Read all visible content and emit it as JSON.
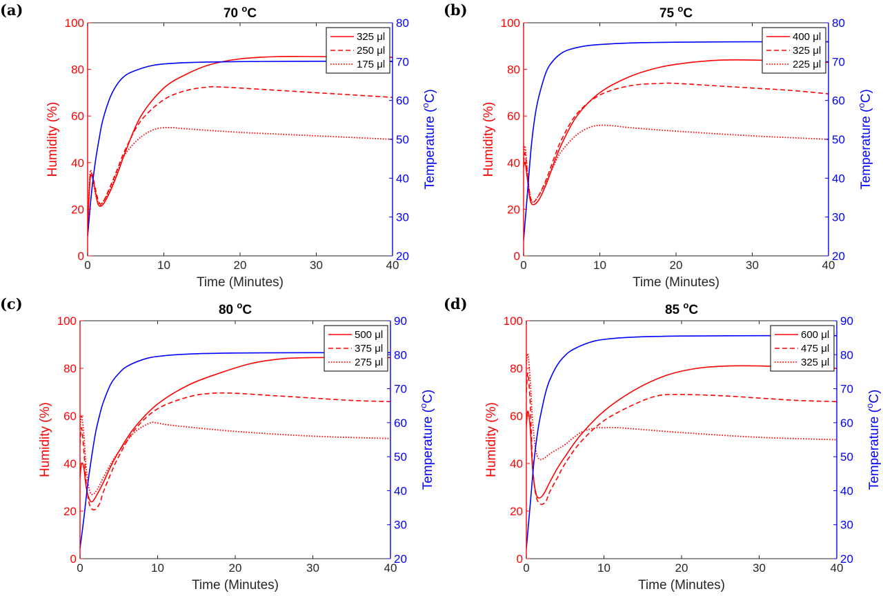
{
  "colors": {
    "humidity": "#ff0000",
    "temperature": "#0000ff",
    "axis": "#262626"
  },
  "chart_data": [
    {
      "panel_label": "(a)",
      "type": "line",
      "title_main": "70 ",
      "title_sup": "o",
      "title_end": "C",
      "xlabel": "Time (Minutes)",
      "ylabel_left": "Humidity (%)",
      "ylabel_right_main": "Temperature (",
      "ylabel_right_sup": "o",
      "ylabel_right_end": "C)",
      "xlim": [
        0,
        40
      ],
      "ylim_left": [
        0,
        100
      ],
      "ylim_right": [
        20,
        80
      ],
      "xticks": [
        "0",
        "10",
        "20",
        "30",
        "40"
      ],
      "yticks_left": [
        "0",
        "20",
        "40",
        "60",
        "80",
        "100"
      ],
      "yticks_right": [
        "20",
        "30",
        "40",
        "50",
        "60",
        "70",
        "80"
      ],
      "legend_position": "top-right",
      "series": [
        {
          "name": "325 μl",
          "axis": "left",
          "style": "solid",
          "x": [
            0,
            0.3,
            0.6,
            1.0,
            1.4,
            2,
            3,
            4,
            5,
            7,
            10,
            13,
            16,
            20,
            25,
            30,
            35,
            40
          ],
          "y": [
            10,
            32,
            34,
            28,
            22,
            22,
            28,
            36,
            45,
            60,
            72,
            78,
            82,
            84.5,
            85.5,
            85.5,
            85.3,
            85.2
          ]
        },
        {
          "name": "250 μl",
          "axis": "left",
          "style": "dashed",
          "x": [
            0,
            0.3,
            0.6,
            1.0,
            1.5,
            2,
            3,
            4,
            5,
            7,
            10,
            13,
            16,
            17,
            20,
            25,
            30,
            35,
            40
          ],
          "y": [
            10,
            33,
            35,
            29,
            23,
            23,
            30,
            38,
            46,
            58,
            67,
            71,
            72.5,
            72.5,
            72,
            71,
            70,
            69,
            68
          ]
        },
        {
          "name": "175 μl",
          "axis": "left",
          "style": "dotted",
          "x": [
            0,
            0.3,
            0.6,
            1.0,
            1.5,
            2,
            3,
            4,
            5,
            7,
            9,
            11,
            13,
            20,
            30,
            40
          ],
          "y": [
            10,
            35,
            34,
            27,
            22,
            23,
            29,
            37,
            44,
            51,
            54.5,
            55,
            54.5,
            53,
            51.5,
            50
          ]
        },
        {
          "name": "Temperature",
          "axis": "right",
          "style": "solid",
          "x": [
            0,
            0.5,
            1,
            1.5,
            2,
            3,
            4,
            5,
            6,
            8,
            10,
            14,
            20,
            30,
            40
          ],
          "y": [
            25,
            36,
            44,
            50,
            55,
            61,
            64.5,
            66.5,
            67.5,
            68.8,
            69.4,
            69.8,
            70,
            70.1,
            70.1
          ]
        }
      ]
    },
    {
      "panel_label": "(b)",
      "type": "line",
      "title_main": "75 ",
      "title_sup": "o",
      "title_end": "C",
      "xlabel": "Time (Minutes)",
      "ylabel_left": "Humidity (%)",
      "ylabel_right_main": "Temperature (",
      "ylabel_right_sup": "o",
      "ylabel_right_end": "C)",
      "xlim": [
        0,
        40
      ],
      "ylim_left": [
        0,
        100
      ],
      "ylim_right": [
        20,
        80
      ],
      "xticks": [
        "0",
        "10",
        "20",
        "30",
        "40"
      ],
      "yticks_left": [
        "0",
        "20",
        "40",
        "60",
        "80",
        "100"
      ],
      "yticks_right": [
        "20",
        "30",
        "40",
        "50",
        "60",
        "70",
        "80"
      ],
      "legend_position": "top-right",
      "series": [
        {
          "name": "400 μl",
          "axis": "left",
          "style": "solid",
          "x": [
            0,
            0.2,
            0.5,
            0.8,
            1.2,
            2,
            3,
            4,
            5,
            7,
            10,
            14,
            18,
            22,
            26,
            30,
            35,
            40
          ],
          "y": [
            38,
            40,
            33,
            25,
            22,
            24,
            31,
            40,
            48,
            60,
            70,
            77,
            81,
            83,
            84,
            84,
            83.5,
            83
          ]
        },
        {
          "name": "325 μl",
          "axis": "left",
          "style": "dashed",
          "x": [
            0,
            0.2,
            0.5,
            0.8,
            1.2,
            2,
            3,
            4,
            5,
            7,
            10,
            14,
            18,
            20,
            25,
            30,
            35,
            40
          ],
          "y": [
            40,
            44,
            35,
            27,
            23,
            26,
            33,
            42,
            50,
            61,
            69,
            73,
            74,
            74,
            73,
            72,
            71,
            69.5
          ]
        },
        {
          "name": "225 μl",
          "axis": "left",
          "style": "dotted",
          "x": [
            0,
            0.2,
            0.5,
            0.8,
            1.2,
            2,
            3,
            4,
            5,
            7,
            9,
            11,
            14,
            20,
            30,
            40
          ],
          "y": [
            42,
            47,
            36,
            27,
            23,
            26,
            32,
            39,
            45,
            52,
            55.5,
            56,
            55,
            53.5,
            51.5,
            50
          ]
        },
        {
          "name": "Temperature",
          "axis": "right",
          "style": "solid",
          "x": [
            0,
            0.5,
            1,
            1.5,
            2,
            3,
            4,
            5,
            6,
            8,
            10,
            14,
            20,
            30,
            40
          ],
          "y": [
            24,
            36,
            48,
            56,
            61,
            67.5,
            70.5,
            72.2,
            73.1,
            74,
            74.4,
            74.8,
            75,
            75.1,
            75.1
          ]
        }
      ]
    },
    {
      "panel_label": "(c)",
      "type": "line",
      "title_main": "80 ",
      "title_sup": "o",
      "title_end": "C",
      "xlabel": "Time (Minutes)",
      "ylabel_left": "Humidity (%)",
      "ylabel_right_main": "Temperature (",
      "ylabel_right_sup": "o",
      "ylabel_right_end": "C)",
      "xlim": [
        0,
        40
      ],
      "ylim_left": [
        0,
        100
      ],
      "ylim_right": [
        20,
        90
      ],
      "xticks": [
        "0",
        "10",
        "20",
        "30",
        "40"
      ],
      "yticks_left": [
        "0",
        "20",
        "40",
        "60",
        "80",
        "100"
      ],
      "yticks_right": [
        "20",
        "30",
        "40",
        "50",
        "60",
        "70",
        "80",
        "90"
      ],
      "legend_position": "top-right",
      "series": [
        {
          "name": "500 μl",
          "axis": "left",
          "style": "solid",
          "x": [
            0,
            0.2,
            0.5,
            0.8,
            1.2,
            1.6,
            2.2,
            3,
            4,
            5,
            7,
            10,
            14,
            18,
            22,
            26,
            30,
            35,
            40
          ],
          "y": [
            34,
            40,
            38,
            30,
            25,
            24,
            27,
            32,
            39,
            45,
            55,
            65,
            73,
            78,
            82,
            84,
            84.5,
            84.5,
            84.5
          ]
        },
        {
          "name": "375 μl",
          "axis": "left",
          "style": "dashed",
          "x": [
            0,
            0.2,
            0.5,
            0.8,
            1.2,
            1.8,
            2.5,
            3,
            4,
            5,
            7,
            10,
            14,
            17,
            20,
            25,
            30,
            35,
            40
          ],
          "y": [
            48,
            55,
            45,
            32,
            23,
            20.5,
            23,
            28,
            36,
            43,
            54,
            63,
            68,
            69.5,
            69.5,
            68.5,
            67.5,
            66.5,
            66
          ]
        },
        {
          "name": "275 μl",
          "axis": "left",
          "style": "dotted",
          "x": [
            0,
            0.2,
            0.5,
            0.8,
            1.2,
            1.6,
            2.2,
            3,
            4,
            5,
            7,
            9,
            10,
            12,
            20,
            30,
            40
          ],
          "y": [
            55,
            60,
            52,
            38,
            29,
            27,
            29,
            34,
            40,
            45,
            53,
            57,
            57,
            56,
            53.5,
            51.5,
            50.5
          ]
        },
        {
          "name": "Temperature",
          "axis": "right",
          "style": "solid",
          "x": [
            0,
            0.5,
            1,
            1.5,
            2,
            2.5,
            3,
            4,
            5,
            6,
            8,
            10,
            14,
            20,
            30,
            40
          ],
          "y": [
            23,
            32,
            42,
            50,
            57,
            62,
            66,
            71.5,
            74.5,
            76.5,
            78.5,
            79.5,
            80.2,
            80.5,
            80.6,
            80.6
          ]
        }
      ]
    },
    {
      "panel_label": "(d)",
      "type": "line",
      "title_main": "85 ",
      "title_sup": "o",
      "title_end": "C",
      "xlabel": "Time (Minutes)",
      "ylabel_left": "Humidity (%)",
      "ylabel_right_main": "Temperature (",
      "ylabel_right_sup": "o",
      "ylabel_right_end": "C)",
      "xlim": [
        0,
        40
      ],
      "ylim_left": [
        0,
        100
      ],
      "ylim_right": [
        20,
        90
      ],
      "xticks": [
        "0",
        "10",
        "20",
        "30",
        "40"
      ],
      "yticks_left": [
        "0",
        "20",
        "40",
        "60",
        "80",
        "100"
      ],
      "yticks_right": [
        "20",
        "30",
        "40",
        "50",
        "60",
        "70",
        "80",
        "90"
      ],
      "legend_position": "top-right",
      "series": [
        {
          "name": "600 μl",
          "axis": "left",
          "style": "solid",
          "x": [
            0,
            0.2,
            0.5,
            0.8,
            1.2,
            1.6,
            2.2,
            3,
            4,
            5,
            7,
            10,
            14,
            18,
            22,
            26,
            30,
            35,
            40
          ],
          "y": [
            56,
            62,
            55,
            38,
            28,
            25.5,
            27,
            32,
            38,
            43,
            52,
            62,
            71,
            77,
            80,
            81,
            81,
            80.5,
            80
          ]
        },
        {
          "name": "475 μl",
          "axis": "left",
          "style": "dashed",
          "x": [
            0,
            0.2,
            0.5,
            0.8,
            1.2,
            1.8,
            2.5,
            3,
            4,
            5,
            7,
            10,
            14,
            17,
            20,
            25,
            30,
            35,
            40
          ],
          "y": [
            70,
            78,
            65,
            40,
            27,
            23,
            24,
            28,
            34,
            40,
            49,
            58,
            65,
            68.5,
            69,
            68.5,
            67.5,
            66.5,
            66
          ]
        },
        {
          "name": "325 μl",
          "axis": "left",
          "style": "dotted",
          "x": [
            0,
            0.2,
            0.5,
            0.8,
            1.2,
            1.6,
            2.2,
            3,
            4,
            5,
            7,
            9,
            10,
            12,
            20,
            30,
            40
          ],
          "y": [
            82,
            86,
            75,
            58,
            46,
            42,
            42,
            44,
            46,
            48,
            53,
            55,
            55,
            55,
            53,
            51,
            50
          ]
        },
        {
          "name": "Temperature",
          "axis": "right",
          "style": "solid",
          "x": [
            0,
            0.5,
            1,
            1.5,
            2,
            2.5,
            3,
            4,
            5,
            6,
            8,
            10,
            14,
            20,
            30,
            40
          ],
          "y": [
            23,
            36,
            49,
            58,
            64,
            69,
            72.5,
            77,
            79.8,
            81.5,
            83.5,
            84.5,
            85.2,
            85.5,
            85.6,
            85.6
          ]
        }
      ]
    }
  ]
}
